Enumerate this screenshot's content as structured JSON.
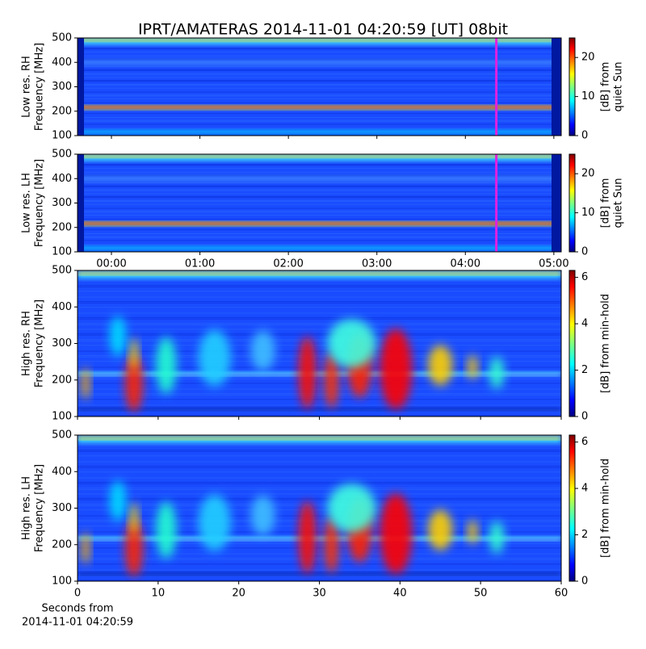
{
  "chart_data": [
    {
      "type": "heatmap",
      "title": "IPRT/AMATERAS 2014-11-01 04:20:59 [UT]   08bit",
      "ylabel": [
        "Low res. RH",
        "Frequency [MHz]"
      ],
      "xlim": [
        -23,
        305
      ],
      "xticks_from": 1,
      "ylim": [
        100,
        500
      ],
      "yticks": [
        100,
        200,
        300,
        400,
        500
      ],
      "clim": [
        0,
        25
      ],
      "cticks": [
        0,
        10,
        20
      ],
      "clabel": [
        "[dB] from",
        "quiet Sun"
      ],
      "marker_x": 261,
      "marker_color": "#e020e0"
    },
    {
      "type": "heatmap",
      "ylabel": [
        "Low res. LH",
        "Frequency [MHz]"
      ],
      "xlim": [
        -23,
        305
      ],
      "xticks": [
        {
          "value": 0,
          "label": "00:00"
        },
        {
          "value": 60,
          "label": "01:00"
        },
        {
          "value": 120,
          "label": "02:00"
        },
        {
          "value": 180,
          "label": "03:00"
        },
        {
          "value": 240,
          "label": "04:00"
        },
        {
          "value": 300,
          "label": "05:00"
        }
      ],
      "ylim": [
        100,
        500
      ],
      "yticks": [
        100,
        200,
        300,
        400,
        500
      ],
      "clim": [
        0,
        25
      ],
      "cticks": [
        0,
        10,
        20
      ],
      "clabel": [
        "[dB] from",
        "quiet Sun"
      ],
      "marker_x": 261,
      "marker_color": "#e020e0"
    },
    {
      "type": "heatmap",
      "ylabel": [
        "High res. RH",
        "Frequency [MHz]"
      ],
      "xlim": [
        0,
        60
      ],
      "xticks_from": 3,
      "ylim": [
        100,
        500
      ],
      "yticks": [
        100,
        200,
        300,
        400,
        500
      ],
      "clim": [
        0,
        6.3
      ],
      "cticks": [
        0,
        2,
        4,
        6
      ],
      "clabel": [
        "[dB] from min-hold"
      ]
    },
    {
      "type": "heatmap",
      "ylabel": [
        "High res. LH",
        "Frequency [MHz]"
      ],
      "xlabel": [
        "Seconds from",
        "2014-11-01 04:20:59"
      ],
      "xlim": [
        0,
        60
      ],
      "xticks": [
        0,
        10,
        20,
        30,
        40,
        50,
        60
      ],
      "ylim": [
        100,
        500
      ],
      "yticks": [
        100,
        200,
        300,
        400,
        500
      ],
      "clim": [
        0,
        6.3
      ],
      "cticks": [
        0,
        2,
        4,
        6
      ],
      "clabel": [
        "[dB] from min-hold"
      ]
    }
  ]
}
